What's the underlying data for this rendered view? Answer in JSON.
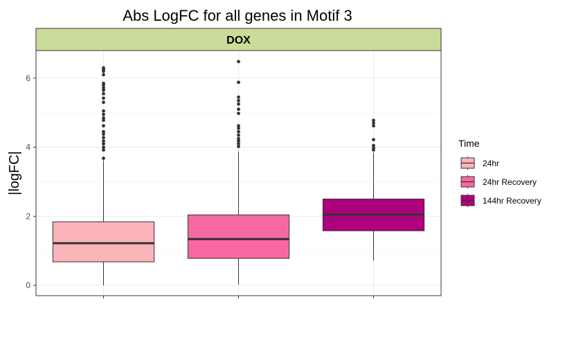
{
  "chart_data": {
    "type": "boxplot",
    "title": "Abs LogFC for all genes in Motif 3",
    "facet_label": "DOX",
    "xlabel": "",
    "ylabel": "|logFC|",
    "ylim": [
      -0.3,
      6.8
    ],
    "yticks": [
      0,
      2,
      4,
      6
    ],
    "grid": true,
    "legend": {
      "title": "Time",
      "position": "right"
    },
    "series": [
      {
        "name": "24hr",
        "color": "#FBB4B9",
        "whisker_low": 0,
        "q1": 0.68,
        "median": 1.22,
        "q3": 1.84,
        "whisker_high": 3.62,
        "outliers": [
          3.68,
          3.92,
          4.0,
          4.1,
          4.18,
          4.28,
          4.38,
          4.45,
          4.62,
          4.78,
          4.85,
          4.95,
          5.05,
          5.3,
          5.42,
          5.55,
          5.65,
          5.72,
          5.8,
          5.85,
          6.1,
          6.2,
          6.25,
          6.3
        ]
      },
      {
        "name": "24hr Recovery",
        "color": "#F768A1",
        "whisker_low": 0.02,
        "q1": 0.78,
        "median": 1.34,
        "q3": 2.04,
        "whisker_high": 3.88,
        "outliers": [
          4.02,
          4.1,
          4.18,
          4.25,
          4.35,
          4.45,
          4.55,
          4.62,
          4.98,
          5.1,
          5.25,
          5.35,
          5.45,
          5.88,
          6.48
        ]
      },
      {
        "name": "144hr Recovery",
        "color": "#AE017E",
        "whisker_low": 0.72,
        "q1": 1.58,
        "median": 2.05,
        "q3": 2.5,
        "whisker_high": 3.85,
        "outliers": [
          3.92,
          3.98,
          4.05,
          4.22,
          4.62,
          4.7,
          4.78
        ]
      }
    ]
  }
}
